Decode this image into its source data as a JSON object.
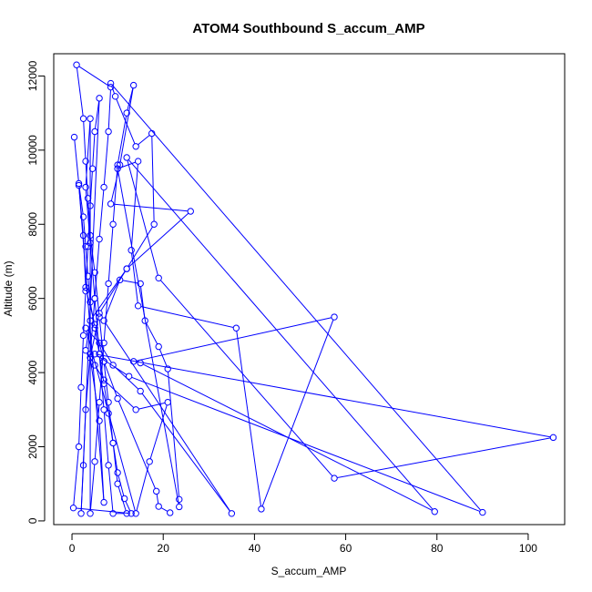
{
  "chart_data": {
    "type": "line",
    "title": "ATOM4 Southbound S_accum_AMP",
    "xlabel": "S_accum_AMP",
    "ylabel": "Altitude (m)",
    "xlim": [
      -4,
      108
    ],
    "ylim": [
      -100,
      12600
    ],
    "xticks": [
      0,
      20,
      40,
      60,
      80,
      100
    ],
    "yticks": [
      0,
      2000,
      4000,
      6000,
      8000,
      10000,
      12000
    ],
    "grid": false,
    "color": "#0000ff",
    "series": [
      {
        "name": "",
        "points": [
          [
            0.5,
            10350
          ],
          [
            1.5,
            9100
          ],
          [
            2.5,
            8200
          ],
          [
            3.0,
            7400
          ],
          [
            3.5,
            6600
          ],
          [
            4.0,
            5900
          ],
          [
            5.0,
            5200
          ],
          [
            6.0,
            4500
          ],
          [
            7.0,
            3700
          ],
          [
            8.0,
            2900
          ],
          [
            9.0,
            2100
          ],
          [
            10.0,
            1300
          ],
          [
            11.5,
            600
          ],
          [
            13.0,
            200
          ],
          [
            0.3,
            350
          ],
          [
            1.5,
            2000
          ],
          [
            2.0,
            3600
          ],
          [
            2.5,
            5000
          ],
          [
            3.0,
            6200
          ],
          [
            3.5,
            7400
          ],
          [
            4.0,
            8500
          ],
          [
            4.5,
            9500
          ],
          [
            5.0,
            10500
          ],
          [
            6.0,
            11400
          ],
          [
            2.0,
            200
          ],
          [
            2.5,
            1500
          ],
          [
            3.0,
            3000
          ],
          [
            4.0,
            4500
          ],
          [
            5.0,
            6000
          ],
          [
            6.0,
            7600
          ],
          [
            7.0,
            9000
          ],
          [
            8.0,
            10500
          ],
          [
            8.5,
            11700
          ],
          [
            1.0,
            12300
          ],
          [
            2.5,
            10850
          ],
          [
            3.0,
            9700
          ],
          [
            3.5,
            8700
          ],
          [
            4.0,
            7700
          ],
          [
            5.0,
            6700
          ],
          [
            6.0,
            5500
          ],
          [
            7.0,
            4300
          ],
          [
            8.0,
            3200
          ],
          [
            9.0,
            2100
          ],
          [
            10.0,
            1000
          ],
          [
            12.0,
            200
          ],
          [
            9.0,
            200
          ],
          [
            8.0,
            1500
          ],
          [
            7.0,
            3000
          ],
          [
            6.0,
            4500
          ],
          [
            5.0,
            6000
          ],
          [
            4.0,
            7500
          ],
          [
            3.0,
            9000
          ],
          [
            4.0,
            10850
          ],
          [
            4.0,
            200
          ],
          [
            5.0,
            1600
          ],
          [
            6.0,
            3200
          ],
          [
            7.0,
            4800
          ],
          [
            8.0,
            6400
          ],
          [
            9.0,
            8000
          ],
          [
            10.0,
            9600
          ],
          [
            12.0,
            11000
          ],
          [
            13.5,
            11750
          ],
          [
            10.5,
            9600
          ],
          [
            8.5,
            8550
          ],
          [
            26.0,
            8350
          ],
          [
            12.0,
            6800
          ],
          [
            4.0,
            5400
          ],
          [
            3.0,
            4600
          ],
          [
            5.0,
            4200
          ],
          [
            7.0,
            3800
          ],
          [
            14.0,
            3000
          ],
          [
            21.0,
            3200
          ],
          [
            17.0,
            1600
          ],
          [
            14.0,
            200
          ],
          [
            3.0,
            5200
          ],
          [
            6.0,
            4800
          ],
          [
            9.0,
            4200
          ],
          [
            15.0,
            3500
          ],
          [
            35.0,
            200
          ],
          [
            7.0,
            5400
          ],
          [
            10.5,
            6500
          ],
          [
            15.0,
            6400
          ],
          [
            16.0,
            5400
          ],
          [
            19.0,
            4700
          ],
          [
            21.0,
            4100
          ],
          [
            23.5,
            580
          ],
          [
            23.5,
            380
          ],
          [
            10.0,
            9500
          ],
          [
            14.5,
            9700
          ],
          [
            13.0,
            7300
          ],
          [
            14.5,
            5800
          ],
          [
            36.0,
            5200
          ],
          [
            41.5,
            320
          ],
          [
            57.5,
            5500
          ],
          [
            13.5,
            4300
          ],
          [
            15.0,
            4260
          ],
          [
            79.5,
            250
          ],
          [
            12.0,
            9800
          ],
          [
            19.0,
            6550
          ],
          [
            57.5,
            1150
          ],
          [
            105.5,
            2250
          ],
          [
            5.0,
            4500
          ],
          [
            12.5,
            3900
          ],
          [
            90.0,
            230
          ],
          [
            8.5,
            11800
          ],
          [
            9.5,
            11450
          ],
          [
            14.0,
            10100
          ],
          [
            17.5,
            10450
          ],
          [
            18.0,
            8000
          ],
          [
            12.0,
            6800
          ],
          [
            6.0,
            5600
          ],
          [
            4.0,
            4400
          ],
          [
            6.0,
            2700
          ],
          [
            7.0,
            500
          ],
          [
            1.5,
            9050
          ],
          [
            2.5,
            7700
          ],
          [
            3.0,
            6300
          ],
          [
            5.0,
            5300
          ],
          [
            7.0,
            4300
          ],
          [
            10.0,
            3300
          ],
          [
            18.5,
            800
          ],
          [
            19.0,
            390
          ],
          [
            21.5,
            220
          ]
        ]
      }
    ]
  }
}
